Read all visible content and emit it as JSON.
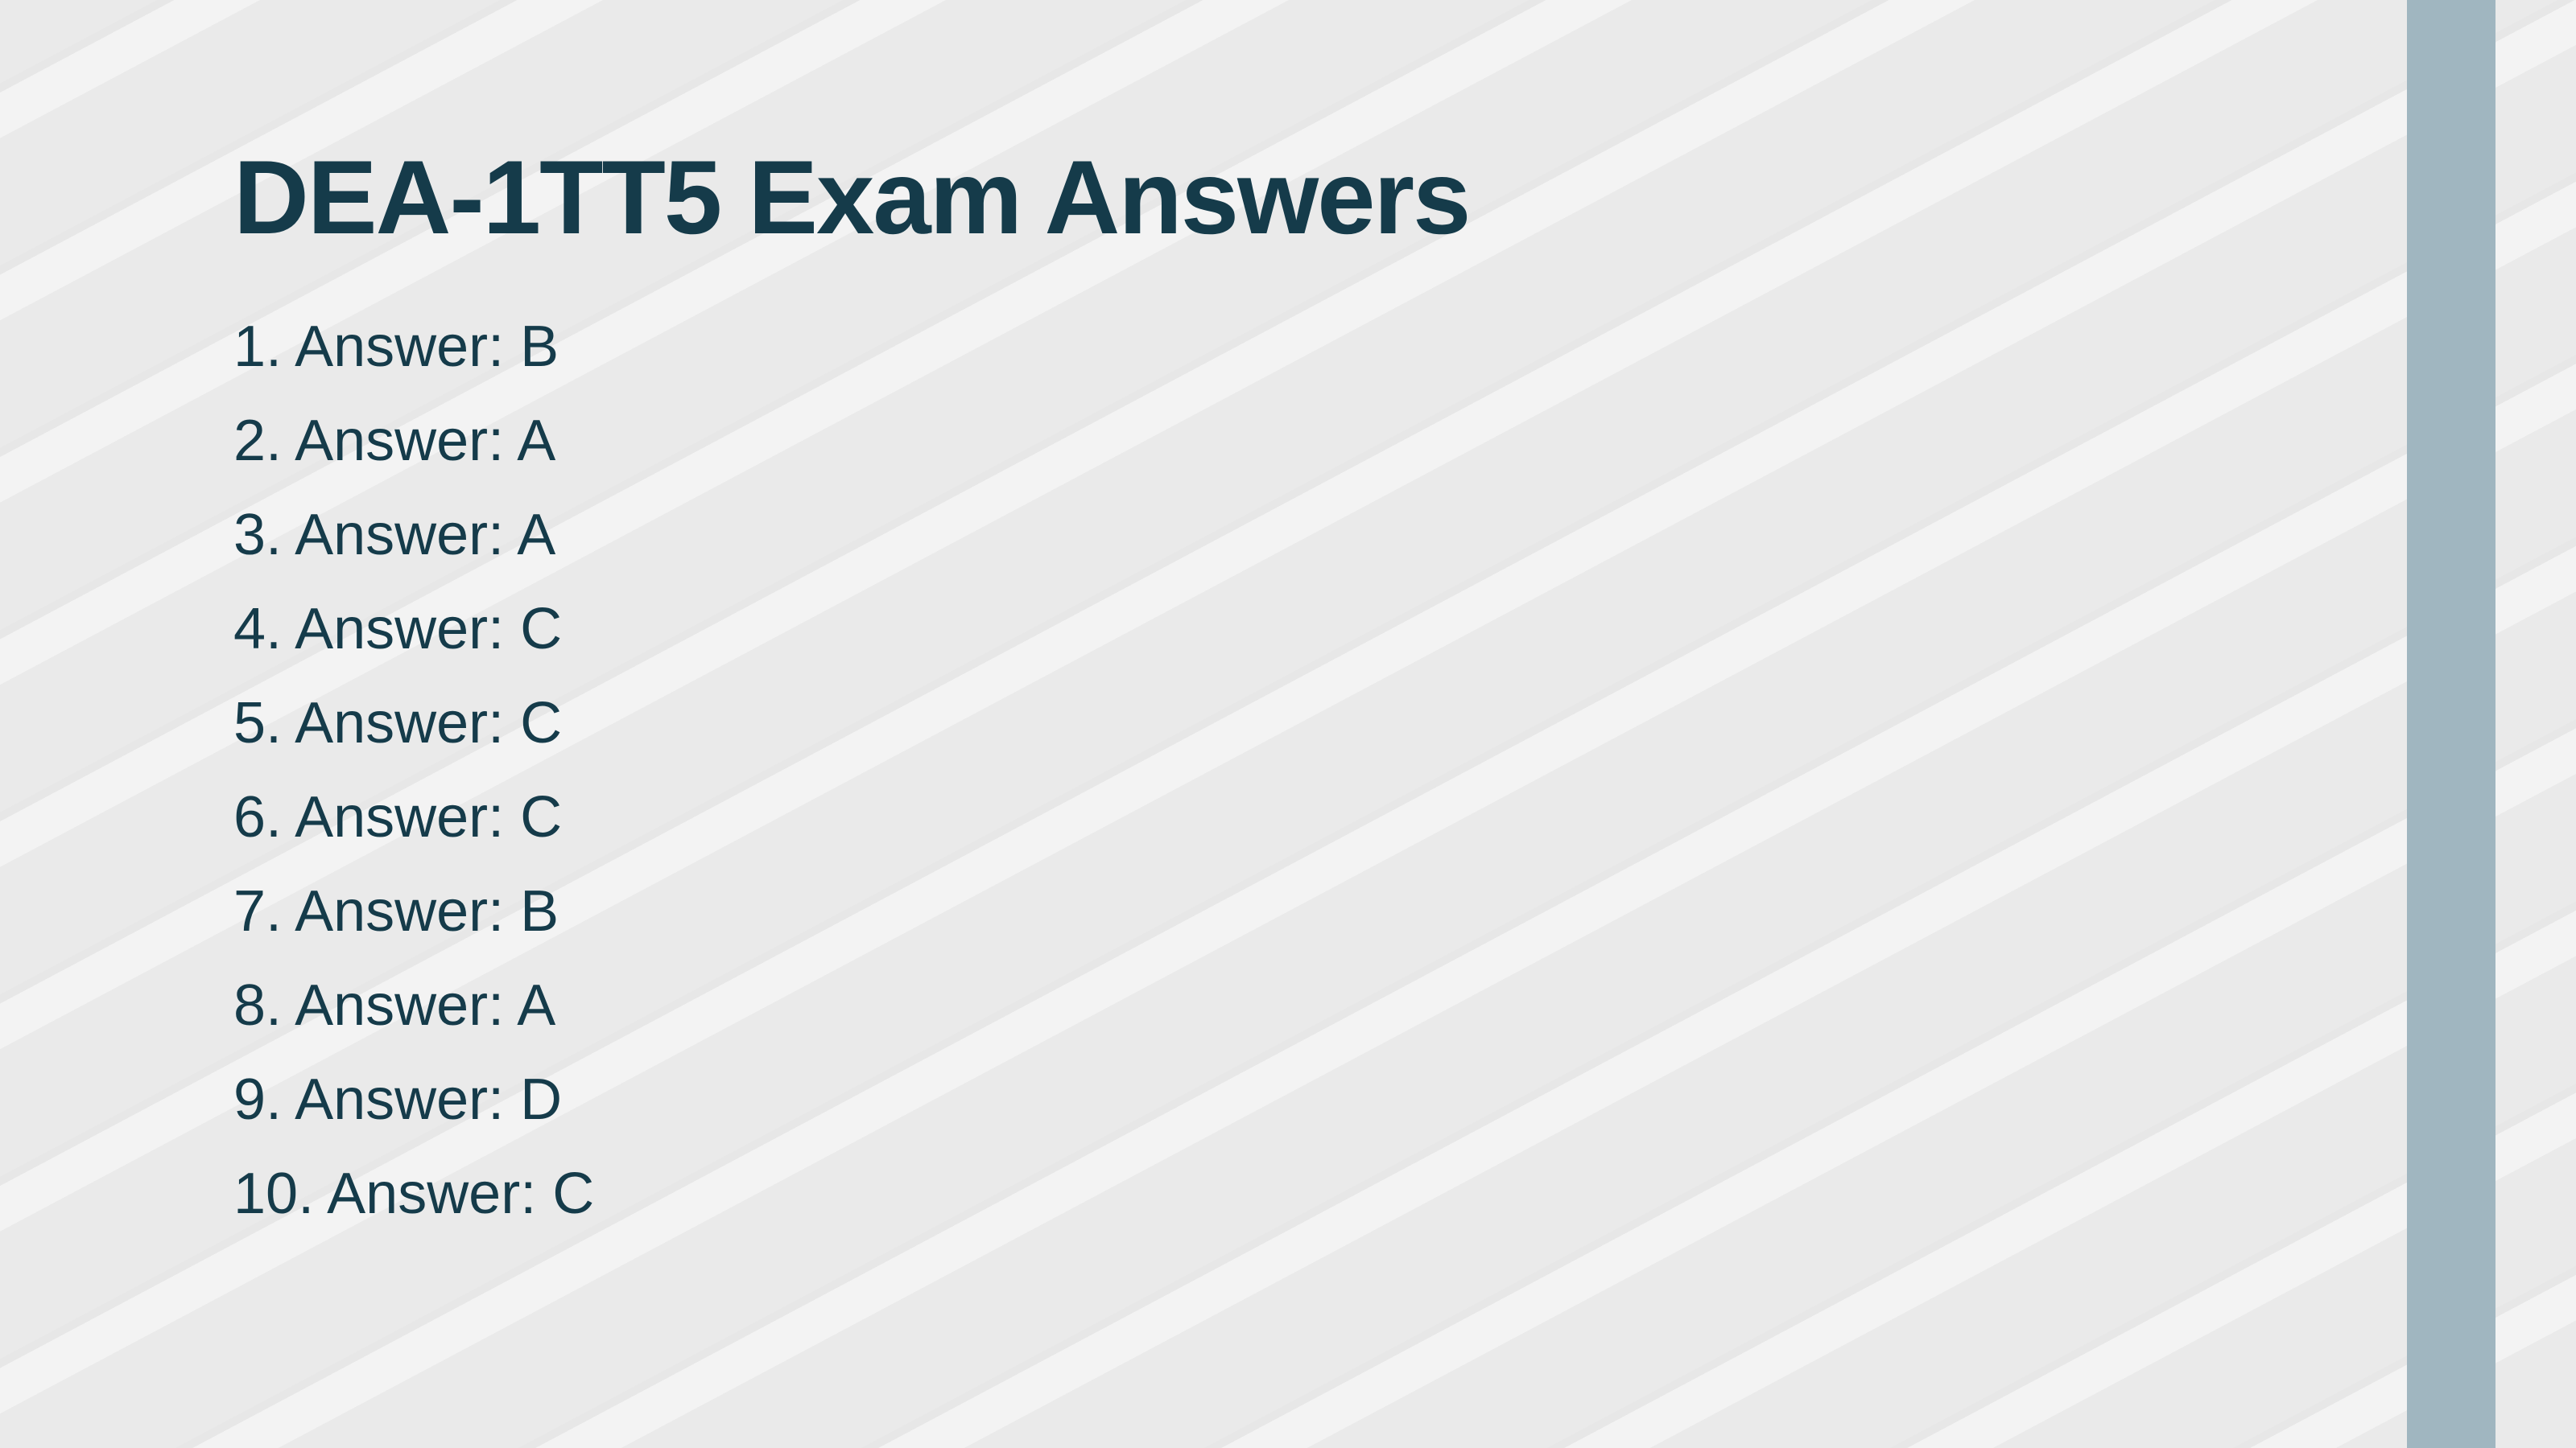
{
  "colors": {
    "background": "#eaeaea",
    "text_primary": "#153b4a",
    "sidebar": "#a0b6c0"
  },
  "title": "DEA-1TT5 Exam Answers",
  "answers": [
    {
      "number": "1",
      "answer": "B"
    },
    {
      "number": "2",
      "answer": "A"
    },
    {
      "number": "3",
      "answer": "A"
    },
    {
      "number": "4",
      "answer": "C"
    },
    {
      "number": "5",
      "answer": "C"
    },
    {
      "number": "6",
      "answer": "C"
    },
    {
      "number": "7",
      "answer": "B"
    },
    {
      "number": "8",
      "answer": "A"
    },
    {
      "number": "9",
      "answer": "D"
    },
    {
      "number": "10",
      "answer": "C"
    }
  ],
  "title_fontsize": 130,
  "answer_fontsize": 72
}
